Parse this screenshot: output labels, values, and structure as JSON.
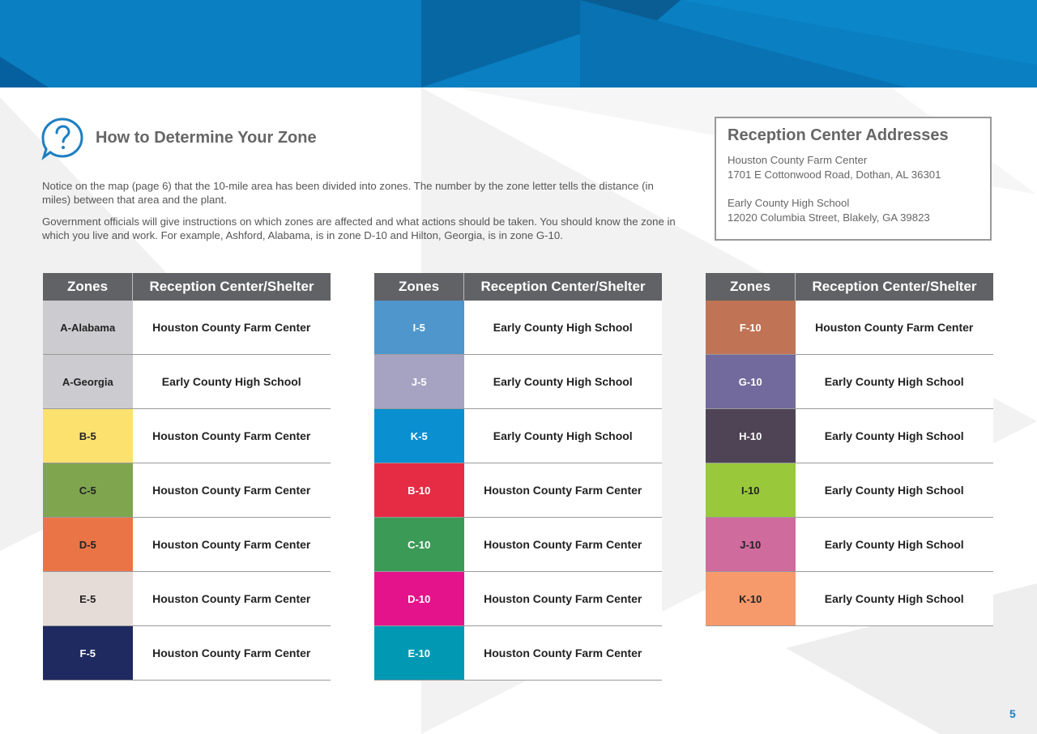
{
  "header": {
    "title": "How to Determine Your Zone",
    "icon": "question-bubble-icon"
  },
  "intro": {
    "p1": "Notice on the map (page 6) that the 10-mile area has been divided into zones. The number by the zone letter tells the distance (in miles) between that area and the plant.",
    "p2": "Government officials will give instructions on which zones are affected and what actions should be taken. You should know the zone in which you live and work. For example, Ashford, Alabama, is in zone D-10 and Hilton, Georgia, is in zone G-10."
  },
  "addresses": {
    "title": "Reception Center Addresses",
    "c1_name": "Houston County Farm Center",
    "c1_addr": "1701 E Cottonwood Road, Dothan, AL 36301",
    "c2_name": "Early County High School",
    "c2_addr": "12020 Columbia Street, Blakely, GA 39823"
  },
  "table_headers": {
    "zones": "Zones",
    "shelter": "Reception Center/Shelter"
  },
  "tables": [
    {
      "rows": [
        {
          "zone": "A-Alabama",
          "color": "#cbcbd0",
          "text_color": "#222222",
          "shelter": "Houston County Farm Center"
        },
        {
          "zone": "A-Georgia",
          "color": "#cbcbd0",
          "text_color": "#222222",
          "shelter": "Early County High School"
        },
        {
          "zone": "B-5",
          "color": "#fde16f",
          "text_color": "#222222",
          "shelter": "Houston County Farm Center"
        },
        {
          "zone": "C-5",
          "color": "#7fa54f",
          "text_color": "#222222",
          "shelter": "Houston County Farm Center"
        },
        {
          "zone": "D-5",
          "color": "#ea7446",
          "text_color": "#222222",
          "shelter": "Houston County Farm Center"
        },
        {
          "zone": "E-5",
          "color": "#e5dcd7",
          "text_color": "#222222",
          "shelter": "Houston County Farm Center"
        },
        {
          "zone": "F-5",
          "color": "#1f2a60",
          "text_color": "#ffffff",
          "shelter": "Houston County Farm Center"
        }
      ]
    },
    {
      "rows": [
        {
          "zone": "I-5",
          "color": "#4f96cc",
          "text_color": "#ffffff",
          "shelter": "Early County High School"
        },
        {
          "zone": "J-5",
          "color": "#a6a3c2",
          "text_color": "#ffffff",
          "shelter": "Early County High School"
        },
        {
          "zone": "K-5",
          "color": "#0a8fd1",
          "text_color": "#ffffff",
          "shelter": "Early County High School"
        },
        {
          "zone": "B-10",
          "color": "#e62c45",
          "text_color": "#ffffff",
          "shelter": "Houston County Farm Center"
        },
        {
          "zone": "C-10",
          "color": "#3c9a57",
          "text_color": "#ffffff",
          "shelter": "Houston County Farm Center"
        },
        {
          "zone": "D-10",
          "color": "#e5138b",
          "text_color": "#ffffff",
          "shelter": "Houston County Farm Center"
        },
        {
          "zone": "E-10",
          "color": "#0198b3",
          "text_color": "#ffffff",
          "shelter": "Houston County Farm Center"
        }
      ]
    },
    {
      "rows": [
        {
          "zone": "F-10",
          "color": "#c07455",
          "text_color": "#ffffff",
          "shelter": "Houston County Farm Center"
        },
        {
          "zone": "G-10",
          "color": "#726a9c",
          "text_color": "#ffffff",
          "shelter": "Early County High School"
        },
        {
          "zone": "H-10",
          "color": "#4f4455",
          "text_color": "#ffffff",
          "shelter": "Early County High School"
        },
        {
          "zone": "I-10",
          "color": "#99c83b",
          "text_color": "#222222",
          "shelter": "Early County High School"
        },
        {
          "zone": "J-10",
          "color": "#cf6b9d",
          "text_color": "#222222",
          "shelter": "Early County High School"
        },
        {
          "zone": "K-10",
          "color": "#f69a6b",
          "text_color": "#222222",
          "shelter": "Early County High School"
        }
      ]
    }
  ],
  "page_number": "5",
  "colors": {
    "accent": "#0a7fc1",
    "header_gray": "#616265"
  }
}
